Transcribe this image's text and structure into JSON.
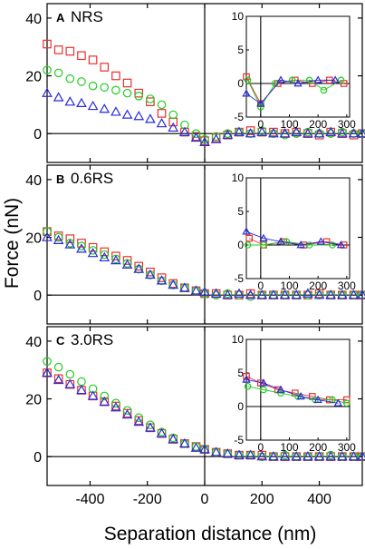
{
  "chart_data": {
    "type": "scatter",
    "xlabel": "Separation distance (nm)",
    "ylabel": "Force (nN)",
    "xlim": [
      -550,
      550
    ],
    "ylim": [
      -10,
      45
    ],
    "x_ticks": [
      -400,
      -200,
      0,
      200,
      400
    ],
    "x_tick_labels": [
      "-400",
      "-200",
      "0",
      "200",
      "400"
    ],
    "y_ticks": [
      0,
      20,
      40
    ],
    "y_tick_labels": [
      "0",
      "20",
      "40"
    ],
    "series_style": [
      {
        "marker": "square",
        "color": "#e8302f"
      },
      {
        "marker": "circle",
        "color": "#22cc22"
      },
      {
        "marker": "triangle",
        "color": "#2a2ad8"
      }
    ],
    "inset": {
      "xlim": [
        -50,
        310
      ],
      "ylim": [
        -5,
        10
      ],
      "x_ticks": [
        0,
        100,
        200,
        300
      ],
      "x_tick_labels": [
        "0",
        "100",
        "200",
        "300"
      ],
      "y_ticks": [
        -5,
        0,
        5,
        10
      ],
      "y_tick_labels": [
        "-5",
        "0",
        "5",
        "10"
      ]
    },
    "panels": [
      {
        "letter": "A",
        "title": "NRS",
        "series": [
          {
            "marker": "square",
            "x": [
              -550,
              -510,
              -470,
              -430,
              -390,
              -350,
              -310,
              -270,
              -230,
              -190,
              -150,
              -110,
              -70,
              -30,
              0,
              40,
              80,
              120,
              160,
              200,
              240,
              280,
              320,
              360,
              400,
              440,
              480,
              520,
              550
            ],
            "y": [
              31,
              29,
              28.5,
              27,
              25.5,
              23,
              20,
              17.5,
              14,
              11,
              7,
              4,
              0.5,
              -1,
              -2.5,
              -1.5,
              -0.5,
              0.5,
              1,
              0.5,
              0.5,
              0,
              0.5,
              0,
              -0.5,
              0.5,
              0,
              -0.5,
              0
            ]
          },
          {
            "marker": "circle",
            "x": [
              -550,
              -510,
              -470,
              -430,
              -390,
              -350,
              -310,
              -270,
              -230,
              -190,
              -150,
              -110,
              -70,
              -30,
              0,
              40,
              80,
              120,
              160,
              200,
              240,
              280,
              320,
              360,
              400,
              440,
              480,
              520,
              550
            ],
            "y": [
              22,
              21,
              19,
              18,
              16.5,
              16,
              15,
              14,
              13,
              12,
              10,
              6.5,
              3,
              0,
              -2,
              -1,
              0,
              0.5,
              0,
              1,
              0,
              -0.5,
              0,
              0.5,
              0,
              0,
              0.5,
              0,
              0
            ]
          },
          {
            "marker": "triangle",
            "x": [
              -550,
              -510,
              -470,
              -430,
              -390,
              -350,
              -310,
              -270,
              -230,
              -190,
              -150,
              -110,
              -70,
              -30,
              0,
              40,
              80,
              120,
              160,
              200,
              240,
              280,
              320,
              360,
              400,
              440,
              480,
              520,
              550
            ],
            "y": [
              14,
              12.5,
              11,
              10.5,
              9.5,
              8.5,
              7.5,
              6.5,
              6,
              5,
              3.5,
              2,
              0.5,
              -1.5,
              -3,
              -2,
              -0.5,
              0.5,
              0,
              0.5,
              0,
              0,
              0.5,
              0,
              0,
              0.5,
              0,
              0,
              0
            ]
          }
        ],
        "inset_series": [
          {
            "marker": "square",
            "x": [
              -50,
              0,
              60,
              120,
              180,
              240,
              290
            ],
            "y": [
              1,
              -3,
              0,
              0.5,
              0,
              0.5,
              0
            ]
          },
          {
            "marker": "circle",
            "x": [
              -45,
              0,
              50,
              110,
              170,
              220,
              280
            ],
            "y": [
              0.5,
              -3.5,
              0,
              0.5,
              0.5,
              -1,
              0.5
            ]
          },
          {
            "marker": "triangle",
            "x": [
              -50,
              0,
              70,
              130,
              200,
              260
            ],
            "y": [
              -1.5,
              -3,
              0.5,
              0,
              0.5,
              0.5
            ]
          }
        ]
      },
      {
        "letter": "B",
        "title": "0.6RS",
        "series": [
          {
            "marker": "square",
            "x": [
              -550,
              -510,
              -470,
              -430,
              -390,
              -350,
              -310,
              -270,
              -230,
              -190,
              -150,
              -110,
              -70,
              -30,
              0,
              40,
              80,
              120,
              160,
              200,
              240,
              280,
              320,
              360,
              400,
              440,
              480,
              520,
              550
            ],
            "y": [
              22,
              20.5,
              19.5,
              18,
              16.5,
              15,
              13.5,
              12,
              10,
              8,
              6,
              4,
              2.5,
              1.5,
              0.5,
              0.5,
              0,
              0,
              0.5,
              0,
              0,
              0,
              0,
              0,
              0.5,
              0,
              0,
              0,
              0
            ]
          },
          {
            "marker": "circle",
            "x": [
              -550,
              -510,
              -470,
              -430,
              -390,
              -350,
              -310,
              -270,
              -230,
              -190,
              -150,
              -110,
              -70,
              -30,
              0,
              40,
              80,
              120,
              160,
              200,
              240,
              280,
              320,
              360,
              400,
              440,
              480,
              520,
              550
            ],
            "y": [
              22,
              20,
              18,
              17,
              15.5,
              14,
              12.5,
              11,
              9,
              7,
              5,
              3.5,
              2.5,
              1.5,
              0.5,
              0,
              0.5,
              0,
              -0.5,
              0,
              0,
              0,
              0,
              0,
              0,
              0,
              0,
              0,
              0
            ]
          },
          {
            "marker": "triangle",
            "x": [
              -550,
              -510,
              -470,
              -430,
              -390,
              -350,
              -310,
              -270,
              -230,
              -190,
              -150,
              -110,
              -70,
              -30,
              0,
              40,
              80,
              120,
              160,
              200,
              240,
              280,
              320,
              360,
              400,
              440,
              480,
              520,
              550
            ],
            "y": [
              20,
              19,
              17.5,
              16,
              14.5,
              13,
              12,
              10.5,
              9,
              7,
              5,
              3.5,
              2.5,
              1.5,
              1,
              0.5,
              0,
              0.5,
              0,
              0,
              0,
              0,
              0,
              0.5,
              0,
              0,
              0,
              0,
              0
            ]
          }
        ],
        "inset_series": [
          {
            "marker": "square",
            "x": [
              -40,
              10,
              80,
              150,
              230,
              290
            ],
            "y": [
              1,
              0,
              0.5,
              0,
              0.5,
              0
            ]
          },
          {
            "marker": "circle",
            "x": [
              -45,
              10,
              90,
              170,
              250
            ],
            "y": [
              0,
              0,
              0.5,
              0,
              0
            ]
          },
          {
            "marker": "triangle",
            "x": [
              -50,
              10,
              70,
              140,
              210,
              280
            ],
            "y": [
              2,
              1,
              0.5,
              0,
              0.5,
              0
            ]
          }
        ]
      },
      {
        "letter": "C",
        "title": "3.0RS",
        "series": [
          {
            "marker": "square",
            "x": [
              -550,
              -510,
              -470,
              -430,
              -390,
              -350,
              -310,
              -270,
              -230,
              -190,
              -150,
              -110,
              -70,
              -30,
              0,
              40,
              80,
              120,
              160,
              200,
              240,
              280,
              320,
              360,
              400,
              440,
              480,
              520,
              550
            ],
            "y": [
              29,
              27,
              25,
              23,
              21,
              19,
              17.5,
              15,
              12.5,
              10,
              8,
              6,
              4.5,
              3.5,
              2.5,
              1.5,
              1,
              0.5,
              0.5,
              0.5,
              0,
              0,
              0,
              0,
              0,
              0,
              0,
              0,
              0
            ]
          },
          {
            "marker": "circle",
            "x": [
              -550,
              -510,
              -470,
              -430,
              -390,
              -350,
              -310,
              -270,
              -230,
              -190,
              -150,
              -110,
              -70,
              -30,
              0,
              40,
              80,
              120,
              160,
              200,
              240,
              280,
              320,
              360,
              400,
              440,
              480,
              520,
              550
            ],
            "y": [
              33,
              31,
              28.5,
              26,
              23.5,
              21,
              18.5,
              16,
              13.5,
              11,
              8.5,
              6.5,
              4.5,
              3.5,
              2.5,
              1.5,
              1,
              0.5,
              0.5,
              0,
              0,
              0.5,
              0,
              0,
              0,
              0.5,
              0,
              0,
              0
            ]
          },
          {
            "marker": "triangle",
            "x": [
              -550,
              -510,
              -470,
              -430,
              -390,
              -350,
              -310,
              -270,
              -230,
              -190,
              -150,
              -110,
              -70,
              -30,
              0,
              40,
              80,
              120,
              160,
              200,
              240,
              280,
              320,
              360,
              400,
              440,
              480,
              520,
              550
            ],
            "y": [
              29,
              26.5,
              25,
              23,
              21,
              19,
              17,
              14.5,
              12,
              10,
              8,
              6,
              4.5,
              3,
              2.5,
              1.5,
              1,
              0.5,
              0.5,
              0,
              0,
              0,
              0,
              0,
              0,
              0,
              0,
              0,
              0
            ]
          }
        ],
        "inset_series": [
          {
            "marker": "square",
            "x": [
              -50,
              0,
              60,
              120,
              180,
              240,
              300
            ],
            "y": [
              4.5,
              3.5,
              2.5,
              2,
              1.5,
              1,
              1
            ]
          },
          {
            "marker": "circle",
            "x": [
              -45,
              10,
              70,
              130,
              190,
              250,
              300
            ],
            "y": [
              3,
              2.5,
              2,
              1.5,
              1,
              1,
              0.5
            ]
          },
          {
            "marker": "triangle",
            "x": [
              -50,
              10,
              70,
              140,
              200,
              270
            ],
            "y": [
              4,
              3.5,
              2.5,
              1.5,
              1,
              0.5
            ]
          }
        ]
      }
    ]
  }
}
